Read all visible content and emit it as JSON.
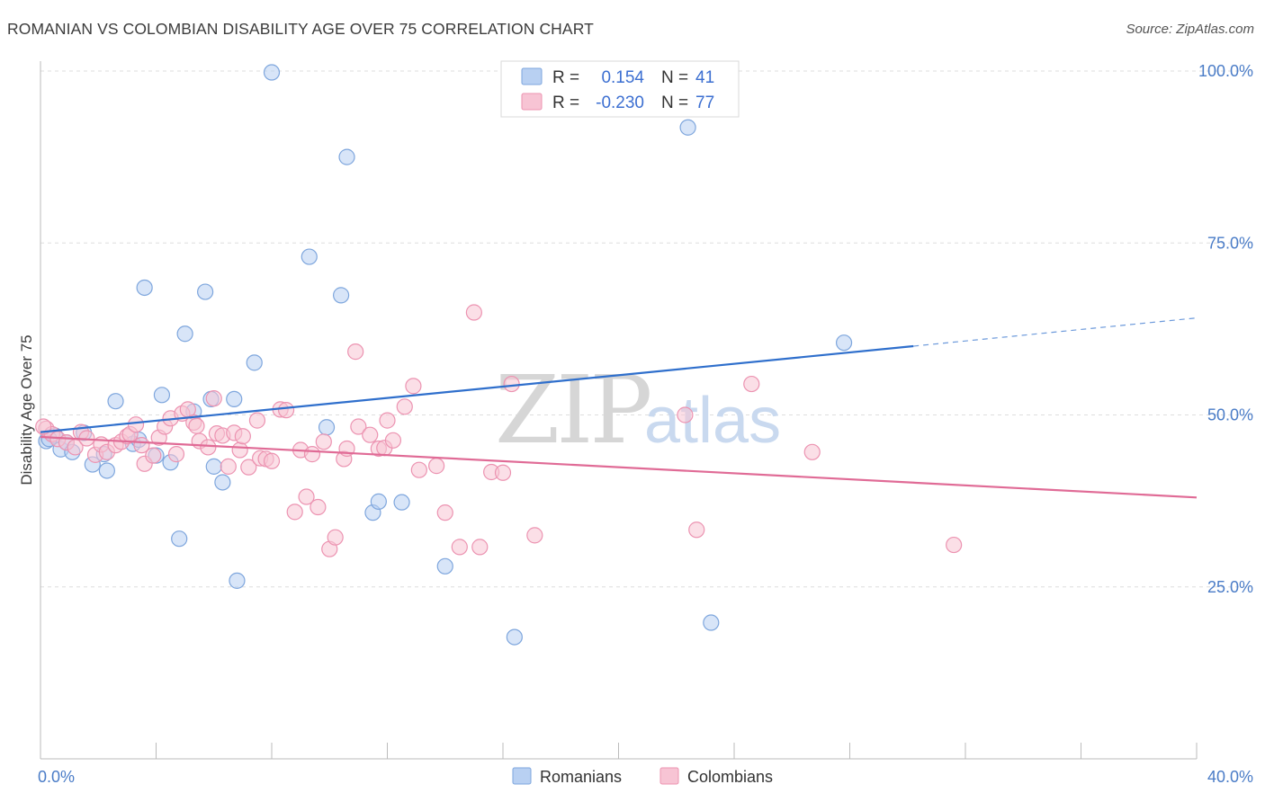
{
  "title": "ROMANIAN VS COLOMBIAN DISABILITY AGE OVER 75 CORRELATION CHART",
  "source": "Source: ZipAtlas.com",
  "watermark": {
    "zip": "ZIP",
    "atlas": "atlas"
  },
  "colors": {
    "romanian_fill": "#b8d0f2",
    "romanian_stroke": "#7ea6dd",
    "romanian_line": "#2f6fcc",
    "colombian_fill": "#f7c4d4",
    "colombian_stroke": "#ec93b1",
    "colombian_line": "#e06b96",
    "tick_text": "#4a7cc7",
    "grid": "#dddddd"
  },
  "legend": {
    "rows": [
      {
        "r_label": "R =",
        "r_value": "0.154",
        "n_label": "N =",
        "n_value": "41"
      },
      {
        "r_label": "R =",
        "r_value": "-0.230",
        "n_label": "N =",
        "n_value": "77"
      }
    ]
  },
  "bottom_legend": [
    "Romanians",
    "Colombians"
  ],
  "chart_data": {
    "type": "scatter",
    "title": "ROMANIAN VS COLOMBIAN DISABILITY AGE OVER 75 CORRELATION CHART",
    "xlabel": "",
    "ylabel": "Disability Age Over 75",
    "xlim": [
      0,
      40
    ],
    "ylim": [
      0,
      100
    ],
    "x_tick_labels": [
      "0.0%",
      "40.0%"
    ],
    "y_ticks": [
      25,
      50,
      75,
      100
    ],
    "y_tick_labels": [
      "25.0%",
      "50.0%",
      "75.0%",
      "100.0%"
    ],
    "grid": true,
    "legend_placement": "top-center",
    "series": [
      {
        "name": "Romanians",
        "r": 0.154,
        "n": 41,
        "trend": {
          "x": [
            0,
            30.2
          ],
          "y": [
            47.5,
            60.0
          ],
          "dashed_to": [
            40,
            64.1
          ]
        },
        "points": [
          [
            0.2,
            46.2
          ],
          [
            0.5,
            47.0
          ],
          [
            0.7,
            45.0
          ],
          [
            0.9,
            46.0
          ],
          [
            1.1,
            44.6
          ],
          [
            1.5,
            47.4
          ],
          [
            1.8,
            42.8
          ],
          [
            2.3,
            41.9
          ],
          [
            2.6,
            52.0
          ],
          [
            3.2,
            45.8
          ],
          [
            3.4,
            46.4
          ],
          [
            3.6,
            68.5
          ],
          [
            4.0,
            44.1
          ],
          [
            4.2,
            52.9
          ],
          [
            4.5,
            43.1
          ],
          [
            4.8,
            32.0
          ],
          [
            5.0,
            61.8
          ],
          [
            5.3,
            50.5
          ],
          [
            5.7,
            67.9
          ],
          [
            5.9,
            52.3
          ],
          [
            6.0,
            42.5
          ],
          [
            6.3,
            40.2
          ],
          [
            6.7,
            52.3
          ],
          [
            6.8,
            25.9
          ],
          [
            7.4,
            57.6
          ],
          [
            8.0,
            99.8
          ],
          [
            9.3,
            73.0
          ],
          [
            9.9,
            48.2
          ],
          [
            10.4,
            67.4
          ],
          [
            10.6,
            87.5
          ],
          [
            11.5,
            35.8
          ],
          [
            11.7,
            37.4
          ],
          [
            12.5,
            37.3
          ],
          [
            14.0,
            28.0
          ],
          [
            16.4,
            17.7
          ],
          [
            16.6,
            100.0
          ],
          [
            22.4,
            91.8
          ],
          [
            23.2,
            19.8
          ],
          [
            27.8,
            60.5
          ],
          [
            0.3,
            46.5
          ],
          [
            2.2,
            44.3
          ]
        ]
      },
      {
        "name": "Colombians",
        "r": -0.23,
        "n": 77,
        "trend": {
          "x": [
            0,
            40
          ],
          "y": [
            46.8,
            38.0
          ]
        },
        "points": [
          [
            0.2,
            48.0
          ],
          [
            0.4,
            47.2
          ],
          [
            0.6,
            46.5
          ],
          [
            0.9,
            46.0
          ],
          [
            1.2,
            45.3
          ],
          [
            1.4,
            47.5
          ],
          [
            1.6,
            46.6
          ],
          [
            1.9,
            44.2
          ],
          [
            2.1,
            45.7
          ],
          [
            2.3,
            44.6
          ],
          [
            2.6,
            45.6
          ],
          [
            2.8,
            46.1
          ],
          [
            3.0,
            46.9
          ],
          [
            3.1,
            47.2
          ],
          [
            3.3,
            48.6
          ],
          [
            3.5,
            45.6
          ],
          [
            3.6,
            42.9
          ],
          [
            3.9,
            44.1
          ],
          [
            4.1,
            46.7
          ],
          [
            4.3,
            48.3
          ],
          [
            4.5,
            49.5
          ],
          [
            4.7,
            44.3
          ],
          [
            4.9,
            50.2
          ],
          [
            5.1,
            50.8
          ],
          [
            5.3,
            48.9
          ],
          [
            5.4,
            48.4
          ],
          [
            5.5,
            46.2
          ],
          [
            5.8,
            45.3
          ],
          [
            6.0,
            52.4
          ],
          [
            6.1,
            47.3
          ],
          [
            6.3,
            47.0
          ],
          [
            6.5,
            42.5
          ],
          [
            6.7,
            47.4
          ],
          [
            6.9,
            44.9
          ],
          [
            7.0,
            46.9
          ],
          [
            7.2,
            42.4
          ],
          [
            7.5,
            49.2
          ],
          [
            7.6,
            43.7
          ],
          [
            7.8,
            43.6
          ],
          [
            8.0,
            43.3
          ],
          [
            8.3,
            50.8
          ],
          [
            8.5,
            50.7
          ],
          [
            8.8,
            35.9
          ],
          [
            9.0,
            44.9
          ],
          [
            9.2,
            38.1
          ],
          [
            9.4,
            44.3
          ],
          [
            9.6,
            36.6
          ],
          [
            9.8,
            46.1
          ],
          [
            10.0,
            30.5
          ],
          [
            10.2,
            32.2
          ],
          [
            10.5,
            43.6
          ],
          [
            10.6,
            45.1
          ],
          [
            10.9,
            59.2
          ],
          [
            11.0,
            48.3
          ],
          [
            11.4,
            47.1
          ],
          [
            11.7,
            45.1
          ],
          [
            11.9,
            45.2
          ],
          [
            12.0,
            49.2
          ],
          [
            12.2,
            46.3
          ],
          [
            12.6,
            51.2
          ],
          [
            12.9,
            54.2
          ],
          [
            13.1,
            42.0
          ],
          [
            13.7,
            42.6
          ],
          [
            14.0,
            35.8
          ],
          [
            14.5,
            30.8
          ],
          [
            15.0,
            64.9
          ],
          [
            15.2,
            30.8
          ],
          [
            15.6,
            41.7
          ],
          [
            16.0,
            41.6
          ],
          [
            16.3,
            54.5
          ],
          [
            17.1,
            32.5
          ],
          [
            22.3,
            50.0
          ],
          [
            22.7,
            33.3
          ],
          [
            24.6,
            54.5
          ],
          [
            26.7,
            44.6
          ],
          [
            31.6,
            31.1
          ],
          [
            0.1,
            48.3
          ]
        ]
      }
    ]
  }
}
